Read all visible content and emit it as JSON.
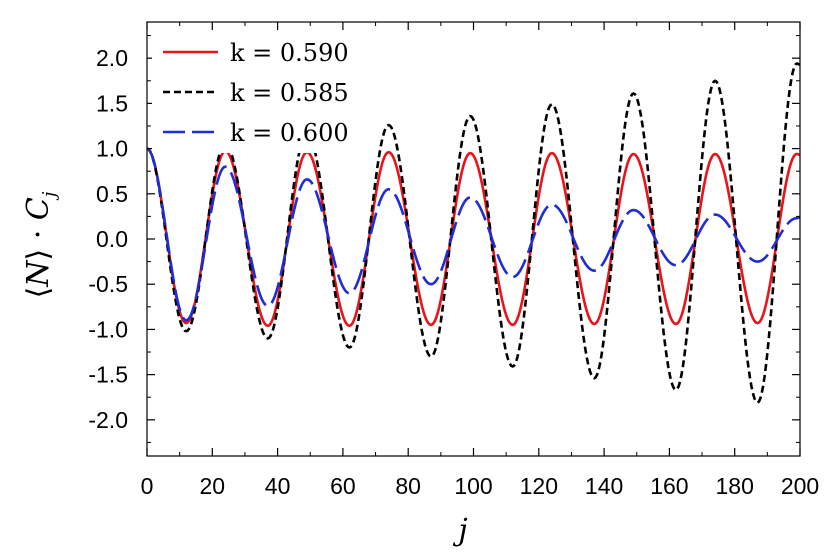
{
  "chart_data": {
    "type": "line",
    "xlabel": "j",
    "ylabel": "⟨N⟩ · C_j",
    "ylabel_parts": {
      "open": "⟨",
      "n": "N",
      "close": "⟩",
      "dot": " · ",
      "c": "C",
      "sub": "j"
    },
    "xlim": [
      0,
      200
    ],
    "ylim": [
      -2.4,
      2.4
    ],
    "x_ticks": [
      "0",
      "20",
      "40",
      "60",
      "80",
      "100",
      "120",
      "140",
      "160",
      "180",
      "200"
    ],
    "y_ticks": [
      "-2.0",
      "-1.5",
      "-1.0",
      "-0.5",
      "0.0",
      "0.5",
      "1.0",
      "1.5",
      "2.0"
    ],
    "grid": false,
    "legend_position": "top-left",
    "series": [
      {
        "name": "k = 0.590",
        "color": "#e8141b",
        "dash": "solid",
        "x": [
          0,
          12,
          24,
          37,
          49,
          62,
          74,
          87,
          99,
          112,
          124,
          137,
          149,
          162,
          174,
          187,
          199,
          200
        ],
        "values": [
          1.0,
          -0.93,
          0.97,
          -0.96,
          0.96,
          -0.96,
          0.96,
          -0.95,
          0.95,
          -0.95,
          0.95,
          -0.94,
          0.94,
          -0.94,
          0.94,
          -0.93,
          0.94,
          0.93
        ]
      },
      {
        "name": "k = 0.585",
        "color": "#000000",
        "dash": "short",
        "x": [
          0,
          12,
          24,
          37,
          49,
          62,
          74,
          87,
          99,
          112,
          124,
          137,
          149,
          162,
          174,
          187,
          199,
          200
        ],
        "values": [
          1.0,
          -1.02,
          1.05,
          -1.1,
          1.17,
          -1.2,
          1.26,
          -1.3,
          1.36,
          -1.41,
          1.49,
          -1.54,
          1.61,
          -1.67,
          1.75,
          -1.81,
          1.94,
          1.93
        ]
      },
      {
        "name": "k = 0.600",
        "color": "#1f2dd6",
        "dash": "long",
        "x": [
          0,
          12,
          24,
          37,
          49,
          62,
          74,
          87,
          99,
          112,
          124,
          137,
          149,
          162,
          174,
          187,
          199,
          200
        ],
        "values": [
          1.0,
          -0.9,
          0.8,
          -0.74,
          0.66,
          -0.6,
          0.55,
          -0.5,
          0.46,
          -0.42,
          0.38,
          -0.35,
          0.32,
          -0.29,
          0.27,
          -0.25,
          0.23,
          0.24
        ]
      }
    ]
  }
}
